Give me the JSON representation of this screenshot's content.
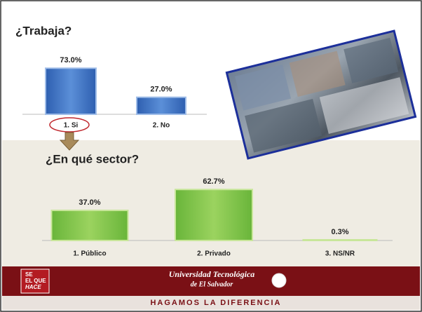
{
  "chart_data": [
    {
      "type": "bar",
      "title": "¿Trabaja?",
      "categories": [
        "1. Si",
        "2. No"
      ],
      "values": [
        73.0,
        27.0
      ],
      "value_labels": [
        "73.0%",
        "27.0%"
      ],
      "color": "#3a6fc0"
    },
    {
      "type": "bar",
      "title": "¿En qué sector?",
      "categories": [
        "1. Público",
        "2. Privado",
        "3. NS/NR"
      ],
      "values": [
        37.0,
        62.7,
        0.3
      ],
      "value_labels": [
        "37.0%",
        "62.7%",
        "0.3%"
      ],
      "color": "#7cc243"
    }
  ],
  "footer": {
    "badge": [
      "SE",
      "EL QUE",
      "HACE"
    ],
    "university": [
      "Universidad Tecnológica",
      "de El Salvador"
    ],
    "motto": "HAGAMOS LA DIFERENCIA"
  }
}
